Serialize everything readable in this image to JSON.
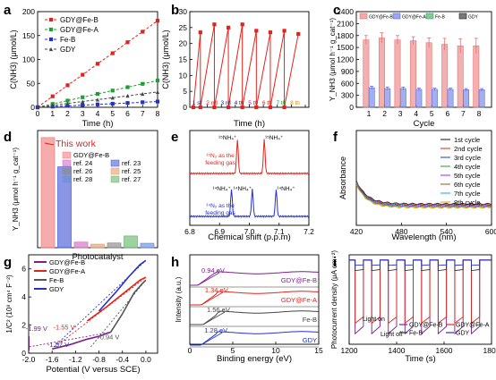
{
  "figure": {
    "panel_labels": [
      "a",
      "b",
      "c",
      "d",
      "e",
      "f",
      "g",
      "h",
      "i"
    ]
  },
  "chart_data": [
    {
      "panel": "a",
      "type": "line",
      "xlabel": "Time (h)",
      "ylabel": "C(NH3) (μmol/L)",
      "xlim": [
        0,
        8
      ],
      "ylim": [
        0,
        200
      ],
      "xticks": [
        "0",
        "1",
        "2",
        "3",
        "4",
        "5",
        "6",
        "7",
        "8"
      ],
      "yticks": [
        "0",
        "50",
        "100",
        "150",
        "200"
      ],
      "legend_position": "top-left",
      "x": [
        0,
        1,
        2,
        3,
        4,
        5,
        6,
        7,
        8
      ],
      "series": [
        {
          "name": "GDY@Fe-B",
          "color": "#e3231b",
          "marker": "square",
          "dash": true,
          "values": [
            0,
            23,
            46,
            68,
            91,
            113,
            136,
            158,
            181
          ]
        },
        {
          "name": "GDY@Fe-A",
          "color": "#1f9e33",
          "marker": "square",
          "dash": true,
          "values": [
            0,
            7,
            14,
            21,
            28,
            35,
            42,
            49,
            56
          ]
        },
        {
          "name": "Fe-B",
          "color": "#2331c9",
          "marker": "square",
          "dash": true,
          "values": [
            0,
            1.5,
            3,
            4.5,
            6,
            7.5,
            9,
            10.5,
            12
          ]
        },
        {
          "name": "GDY",
          "color": "#444444",
          "marker": "triangle",
          "dash": true,
          "values": [
            0,
            4,
            8,
            12,
            16,
            20,
            24,
            28,
            32
          ]
        }
      ]
    },
    {
      "panel": "b",
      "type": "line",
      "xlabel": "Time (h)",
      "ylabel": "C(NH3) (μmol/L)",
      "xlim": [
        0,
        8
      ],
      "ylim": [
        0,
        30
      ],
      "xticks": [
        "0",
        "1",
        "2",
        "3",
        "4",
        "5",
        "6",
        "7",
        "8"
      ],
      "yticks": [
        "0",
        "5",
        "10",
        "15",
        "20",
        "25",
        "30"
      ],
      "color": "#e3231b",
      "segments": [
        {
          "x0": 0,
          "y0": 0,
          "x1": 0.5,
          "y1": 23.5
        },
        {
          "x0": 0.5,
          "y0": 0,
          "x1": 1.5,
          "y1": 26
        },
        {
          "x0": 1.5,
          "y0": 0,
          "x1": 2.5,
          "y1": 25
        },
        {
          "x0": 2.5,
          "y0": 0,
          "x1": 3.5,
          "y1": 26
        },
        {
          "x0": 3.5,
          "y0": 0,
          "x1": 4.5,
          "y1": 24
        },
        {
          "x0": 4.5,
          "y0": 0,
          "x1": 5.5,
          "y1": 23.5
        },
        {
          "x0": 5.5,
          "y0": 0,
          "x1": 6.5,
          "y1": 24
        },
        {
          "x0": 6.5,
          "y0": 0,
          "x1": 7.5,
          "y1": 23
        }
      ],
      "annotations": [
        {
          "text": "1 st",
          "x": 0.2,
          "color": "#1a1a8c"
        },
        {
          "text": "2 nd",
          "x": 1.25,
          "color": "#e3231b"
        },
        {
          "text": "3 rd",
          "x": 2.25,
          "color": "#1a1a8c"
        },
        {
          "text": "4 th",
          "x": 3.2,
          "color": "#1a1a8c"
        },
        {
          "text": "5 th",
          "x": 4.2,
          "color": "#a020a0"
        },
        {
          "text": "6 th",
          "x": 5.2,
          "color": "#e3231b"
        },
        {
          "text": "7 th",
          "x": 6.2,
          "color": "#1f9e33"
        },
        {
          "text": "8 th",
          "x": 7.2,
          "color": "#e88a00"
        }
      ]
    },
    {
      "panel": "c",
      "type": "bar",
      "xlabel": "Cycle",
      "ylabel": "Y_NH3 (μmol h⁻¹ g_cat⁻¹)",
      "ylim": [
        0,
        2400
      ],
      "yticks": [
        "0",
        "300",
        "600",
        "900",
        "1200",
        "1500",
        "1800",
        "2100",
        "2400"
      ],
      "categories": [
        "1",
        "2",
        "3",
        "4",
        "5",
        "6",
        "7",
        "8"
      ],
      "legend_position": "top",
      "series": [
        {
          "name": "GDY@Fe-B",
          "color": "#e87070",
          "values": [
            1690,
            1740,
            1690,
            1670,
            1620,
            1580,
            1540,
            1540
          ],
          "errors": [
            110,
            130,
            110,
            100,
            120,
            150,
            180,
            190
          ]
        },
        {
          "name": "GDY@Fe-A",
          "color": "#5b6ee0",
          "values": [
            490,
            470,
            470,
            450,
            450,
            450,
            440,
            440
          ],
          "errors": [
            40,
            40,
            35,
            35,
            30,
            30,
            30,
            30
          ]
        },
        {
          "name": "Fe-B",
          "color": "#34a853",
          "values": [
            0,
            0,
            0,
            0,
            0,
            0,
            0,
            0
          ],
          "errors": []
        },
        {
          "name": "GDY",
          "color": "#222222",
          "values": [
            0,
            0,
            0,
            0,
            0,
            0,
            0,
            0
          ],
          "errors": []
        }
      ]
    },
    {
      "panel": "d",
      "type": "bar",
      "xlabel": "Photocatalyst",
      "ylabel": "Y_NH3 (μmol h⁻¹ g_cat⁻¹)",
      "annotation": "This work",
      "categories": [
        "GDY@Fe-B",
        "ref. 23",
        "ref. 24",
        "ref. 25",
        "ref. 26",
        "ref. 27",
        "ref. 28"
      ],
      "values": [
        1880,
        1380,
        95,
        60,
        80,
        200,
        75
      ],
      "colors": [
        "#f08080",
        "#4a5dd9",
        "#d46fc8",
        "#e0a070",
        "#8a8a8a",
        "#6db86d",
        "#6a8fd6"
      ],
      "legend": [
        "GDY@Fe-B",
        "ref. 23",
        "ref. 24",
        "ref. 25",
        "ref. 26",
        "ref. 27",
        "ref. 28"
      ]
    },
    {
      "panel": "e",
      "type": "line",
      "xlabel": "Chemical shift (p.p.m)",
      "xlim": [
        6.8,
        7.2
      ],
      "xticks": [
        "6.8",
        "6.9",
        "7.0",
        "7.1",
        "7.2"
      ],
      "series": [
        {
          "name": "15N2 as the feeding gas",
          "label_text": "¹⁵N₂ as the feeding gas",
          "color": "#e3231b",
          "peaks": [
            6.96,
            7.05
          ],
          "peak_labels": [
            "¹⁵NH₄⁺",
            "¹⁵NH₄⁺"
          ]
        },
        {
          "name": "14N2 as the feeding gas",
          "label_text": "¹⁴N₂ as the feeding gas",
          "color": "#2331c9",
          "peaks": [
            6.94,
            7.01,
            7.09
          ],
          "peak_labels": [
            "¹⁴NH₄⁺",
            "¹⁴NH₄⁺",
            "¹⁴NH₄⁺"
          ]
        }
      ]
    },
    {
      "panel": "f",
      "type": "line",
      "xlabel": "Wavelength (nm)",
      "ylabel": "Absorbance",
      "xlim": [
        420,
        600
      ],
      "xticks": [
        "420",
        "480",
        "540",
        "600"
      ],
      "legend_position": "top-right",
      "series": [
        {
          "name": "1st cycle",
          "color": "#111111"
        },
        {
          "name": "2nd cycle",
          "color": "#e3231b"
        },
        {
          "name": "3rd cycle",
          "color": "#2331c9"
        },
        {
          "name": "4th cycle",
          "color": "#1f9e33"
        },
        {
          "name": "5th cycle",
          "color": "#a020f0"
        },
        {
          "name": "6th cycle",
          "color": "#8b5a2b"
        },
        {
          "name": "7th cycle",
          "color": "#1ab0b0"
        },
        {
          "name": "8th cycle",
          "color": "#e0a000"
        }
      ]
    },
    {
      "panel": "g",
      "type": "line",
      "xlabel": "Potential (V versus SCE)",
      "ylabel": "1/C² (10⁸ cm⁴ F⁻²)",
      "xlim": [
        -2.0,
        0.2
      ],
      "ylim": [
        0,
        7
      ],
      "xticks": [
        "-2.0",
        "-1.6",
        "-1.2",
        "-0.8",
        "-0.4",
        "0.0"
      ],
      "yticks": [
        "0",
        "2",
        "4",
        "6"
      ],
      "legend_position": "top-left",
      "series": [
        {
          "name": "GDY@Fe-B",
          "color": "#7b1f8c",
          "intercept": -1.99,
          "intercept_label": "-1.99 V",
          "x": [
            -1.6,
            -1.3,
            -1.0,
            -0.8,
            -0.6
          ],
          "values": [
            0.3,
            0.6,
            1.0,
            1.2,
            1.5
          ]
        },
        {
          "name": "GDY@Fe-A",
          "color": "#e3231b",
          "intercept": -1.55,
          "intercept_label": "-1.55 V",
          "x": [
            -1.0,
            -0.7,
            -0.4,
            -0.1,
            0.0
          ],
          "values": [
            2.3,
            3.2,
            4.2,
            5.2,
            5.4
          ]
        },
        {
          "name": "Fe-B",
          "color": "#555555",
          "intercept": -0.94,
          "intercept_label": "-0.94 V",
          "x": [
            -0.6,
            -0.4,
            -0.2,
            -0.05,
            0.0
          ],
          "values": [
            1.5,
            2.8,
            4.3,
            5.0,
            5.2
          ]
        },
        {
          "name": "GDY",
          "color": "#2331c9",
          "intercept": -1.57,
          "intercept_label": "-1.57 V",
          "x": [
            -0.8,
            -0.5,
            -0.3,
            -0.1,
            0.0
          ],
          "values": [
            3.0,
            4.4,
            5.4,
            6.3,
            6.6
          ]
        }
      ]
    },
    {
      "panel": "h",
      "type": "line",
      "xlabel": "Binding energy (eV)",
      "ylabel": "Intensity (a.u.)",
      "xlim": [
        0,
        15
      ],
      "xticks": [
        "0",
        "5",
        "10",
        "15"
      ],
      "series": [
        {
          "name": "GDY@Fe-B",
          "color": "#7b1f8c",
          "edge": 0.94,
          "edge_label": "0.94 eV"
        },
        {
          "name": "GDY@Fe-A",
          "color": "#e3231b",
          "edge": 1.34,
          "edge_label": "1.34 eV"
        },
        {
          "name": "Fe-B",
          "color": "#444444",
          "edge": 1.56,
          "edge_label": "1.56 eV"
        },
        {
          "name": "GDY",
          "color": "#2331c9",
          "edge": 1.28,
          "edge_label": "1.28 eV"
        }
      ]
    },
    {
      "panel": "i",
      "type": "line",
      "xlabel": "Time (s)",
      "ylabel": "Photocurrent density (μA cm⁻²)",
      "xlim": [
        1200,
        1800
      ],
      "xticks": [
        "1200",
        "1400",
        "1600",
        "1800"
      ],
      "annotations": [
        "Light on",
        "Light off"
      ],
      "series": [
        {
          "name": "GDY@Fe-B",
          "color": "#7b1f8c",
          "depth": -28
        },
        {
          "name": "GDY@Fe-A",
          "color": "#e3231b",
          "depth": -24
        },
        {
          "name": "Fe-B",
          "color": "#333333",
          "depth": -4
        },
        {
          "name": "GDY",
          "color": "#2331c9",
          "depth": -2
        }
      ]
    }
  ]
}
